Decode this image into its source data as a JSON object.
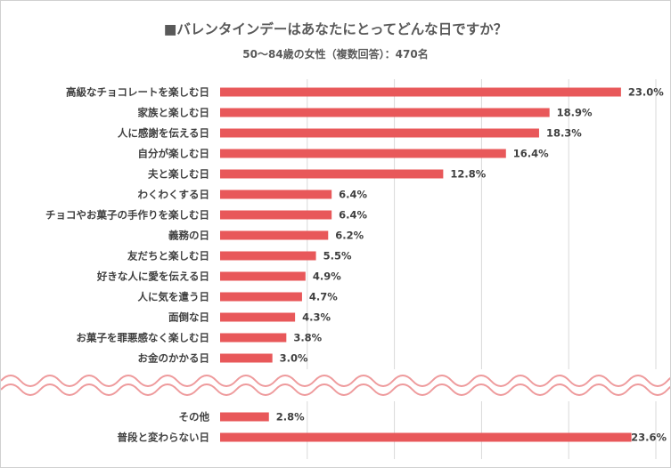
{
  "title": "■バレンタインデーはあなたにとってどんな日ですか？",
  "subtitle": "50～84歳の女性（複数回答）：470名",
  "colors": {
    "bar": "#e8585a",
    "grid": "#d9d9d9",
    "break_band": "#fde3e4",
    "break_wave": "#ee9a9c",
    "text": "#404040"
  },
  "chart_data": {
    "type": "bar",
    "orientation": "horizontal",
    "title": "■バレンタインデーはあなたにとってどんな日ですか？",
    "subtitle": "50～84歳の女性（複数回答）：470名",
    "value_suffix": "%",
    "xlim": [
      0,
      25
    ],
    "grid": true,
    "axis_break": true,
    "groups": [
      {
        "categories": [
          "高級なチョコレートを楽しむ日",
          "家族と楽しむ日",
          "人に感謝を伝える日",
          "自分が楽しむ日",
          "夫と楽しむ日",
          "わくわくする日",
          "チョコやお菓子の手作りを楽しむ日",
          "義務の日",
          "友だちと楽しむ日",
          "好きな人に愛を伝える日",
          "人に気を遣う日",
          "面倒な日",
          "お菓子を罪悪感なく楽しむ日",
          "お金のかかる日"
        ],
        "values": [
          23.0,
          18.9,
          18.3,
          16.4,
          12.8,
          6.4,
          6.4,
          6.2,
          5.5,
          4.9,
          4.7,
          4.3,
          3.8,
          3.0
        ],
        "labels": [
          "23.0%",
          "18.9%",
          "18.3%",
          "16.4%",
          "12.8%",
          "6.4%",
          "6.4%",
          "6.2%",
          "5.5%",
          "4.9%",
          "4.7%",
          "4.3%",
          "3.8%",
          "3.0%"
        ]
      },
      {
        "categories": [
          "その他",
          "普段と変わらない日"
        ],
        "values": [
          2.8,
          23.6
        ],
        "labels": [
          "2.8%",
          "23.6%"
        ]
      }
    ]
  }
}
